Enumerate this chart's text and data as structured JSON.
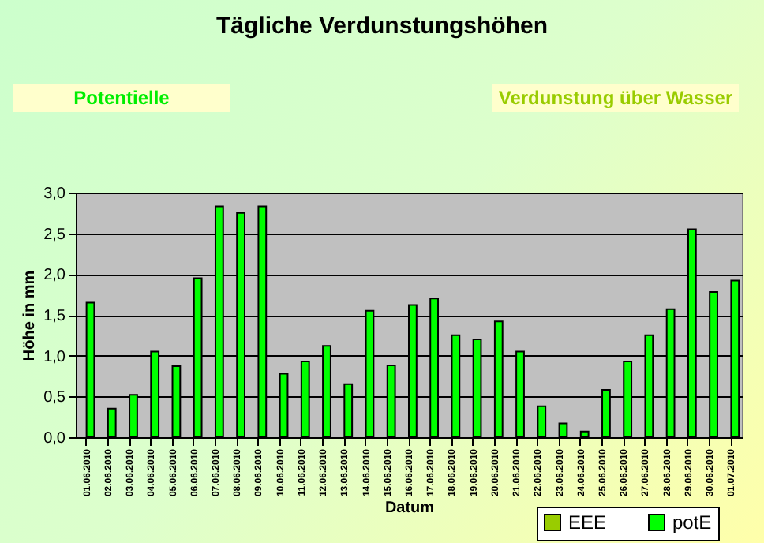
{
  "chart_data": {
    "type": "bar",
    "title": "Tägliche Verdunstungshöhen",
    "annotations": [
      "Potentielle",
      "Verdunstung über Wasser"
    ],
    "xlabel": "Datum",
    "ylabel": "Höhe in mm",
    "categories": [
      "01.06.2010",
      "02.06.2010",
      "03.06.2010",
      "04.06.2010",
      "05.06.2010",
      "06.06.2010",
      "07.06.2010",
      "08.06.2010",
      "09.06.2010",
      "10.06.2010",
      "11.06.2010",
      "12.06.2010",
      "13.06.2010",
      "14.06.2010",
      "15.06.2010",
      "16.06.2010",
      "17.06.2010",
      "18.06.2010",
      "19.06.2010",
      "20.06.2010",
      "21.06.2010",
      "22.06.2010",
      "23.06.2010",
      "24.06.2010",
      "25.06.2010",
      "26.06.2010",
      "27.06.2010",
      "28.06.2010",
      "29.06.2010",
      "30.06.2010",
      "01.07.2010"
    ],
    "series": [
      {
        "name": "EEE",
        "color": "#99cc00",
        "values": [
          null,
          null,
          null,
          null,
          null,
          null,
          null,
          null,
          null,
          null,
          null,
          null,
          null,
          null,
          null,
          null,
          null,
          null,
          null,
          null,
          null,
          null,
          null,
          null,
          null,
          null,
          null,
          null,
          null,
          null,
          null
        ]
      },
      {
        "name": "potE",
        "color": "#00ff00",
        "values": [
          1.65,
          0.35,
          0.52,
          1.05,
          0.87,
          1.95,
          2.83,
          2.75,
          2.83,
          0.78,
          0.93,
          1.12,
          0.65,
          1.55,
          0.88,
          1.62,
          1.7,
          1.25,
          1.2,
          1.42,
          1.05,
          0.38,
          0.17,
          0.07,
          0.58,
          0.93,
          1.25,
          1.57,
          2.55,
          1.78,
          1.92
        ]
      }
    ],
    "ylim": [
      0,
      3
    ],
    "yticks": [
      {
        "value": 0,
        "label": "0,0"
      },
      {
        "value": 0.5,
        "label": "0,5"
      },
      {
        "value": 1,
        "label": "1,0"
      },
      {
        "value": 1.5,
        "label": "1,5"
      },
      {
        "value": 2,
        "label": "2,0"
      },
      {
        "value": 2.5,
        "label": "2,5"
      },
      {
        "value": 3,
        "label": "3,0"
      }
    ],
    "grid": "y",
    "legend": "bottom right"
  }
}
